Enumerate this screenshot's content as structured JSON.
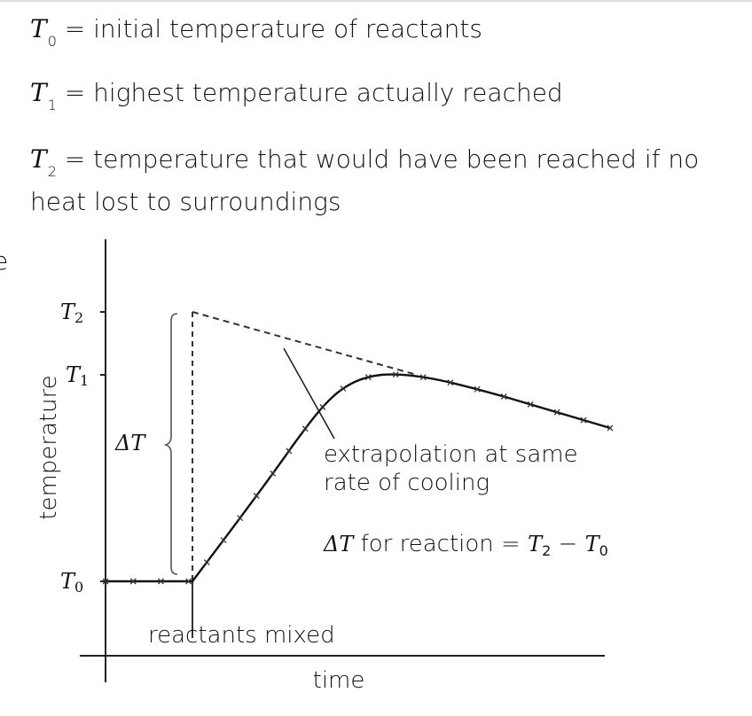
{
  "definitions": [
    {
      "symbol": "T",
      "subscript": "0",
      "text": "= initial temperature of reactants"
    },
    {
      "symbol": "T",
      "subscript": "1",
      "text": "= highest temperature actually reached"
    },
    {
      "symbol": "T",
      "subscript": "2",
      "text": "= temperature that would have been reached if no",
      "continuation": "heat lost to surroundings"
    }
  ],
  "cut_off_text": "e",
  "graph": {
    "y_axis_label": "temperature",
    "x_axis_label": "time",
    "ticks": {
      "t2": "T",
      "t2_sub": "2",
      "t1": "T",
      "t1_sub": "1",
      "t0": "T",
      "t0_sub": "0"
    },
    "delta_label": "ΔT",
    "annotation_line1": "extrapolation at same",
    "annotation_line2": "rate of cooling",
    "formula_prefix": "ΔT",
    "formula_mid": " for reaction = ",
    "formula_t2": "T",
    "formula_t2_sub": "2",
    "formula_minus": " − ",
    "formula_t0": "T",
    "formula_t0_sub": "0",
    "event_label": "reactants mixed"
  }
}
